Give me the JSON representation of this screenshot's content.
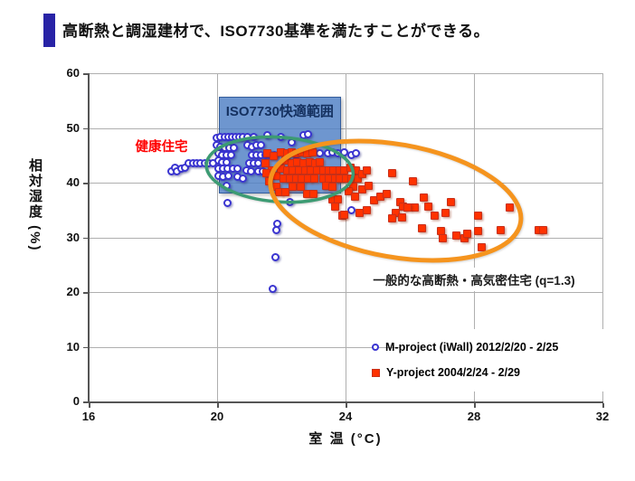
{
  "slide": {
    "title": "高断熱と調湿建材で、ISO7730基準を満たすことができる。",
    "accent_color": "#2823A6"
  },
  "chart_data": {
    "type": "scatter",
    "title": "",
    "xlabel": "室 温 (°C)",
    "ylabel": "相対湿度 (%)",
    "xlim": [
      16,
      32
    ],
    "ylim": [
      0,
      60
    ],
    "xticks": [
      16,
      20,
      24,
      28,
      32
    ],
    "yticks": [
      0,
      10,
      20,
      30,
      40,
      50,
      60
    ],
    "grid": true,
    "legend_position": "bottom-right",
    "series": [
      {
        "name": "M-project (iWall) 2012/2/20 - 2/25",
        "marker": "circle",
        "color": "#3B35D1",
        "fill": "#FFFFFF",
        "points": [
          [
            18.57,
            42.1
          ],
          [
            18.68,
            42.8
          ],
          [
            18.74,
            42.0
          ],
          [
            18.88,
            42.6
          ],
          [
            18.99,
            42.8
          ],
          [
            19.1,
            43.6
          ],
          [
            19.24,
            43.6
          ],
          [
            19.36,
            43.6
          ],
          [
            19.47,
            43.6
          ],
          [
            19.61,
            43.6
          ],
          [
            19.72,
            43.6
          ],
          [
            19.86,
            43.6
          ],
          [
            19.98,
            48.1
          ],
          [
            20.09,
            48.3
          ],
          [
            20.23,
            48.4
          ],
          [
            20.34,
            48.3
          ],
          [
            20.46,
            48.4
          ],
          [
            20.57,
            48.3
          ],
          [
            20.68,
            48.4
          ],
          [
            20.79,
            48.3
          ],
          [
            20.94,
            48.4
          ],
          [
            21.13,
            48.3
          ],
          [
            21.56,
            48.6
          ],
          [
            21.98,
            48.3
          ],
          [
            22.32,
            47.3
          ],
          [
            22.69,
            48.6
          ],
          [
            22.83,
            48.8
          ],
          [
            19.98,
            46.8
          ],
          [
            20.09,
            46.6
          ],
          [
            20.23,
            46.4
          ],
          [
            20.37,
            46.4
          ],
          [
            20.51,
            46.3
          ],
          [
            20.94,
            46.8
          ],
          [
            21.08,
            46.6
          ],
          [
            21.22,
            46.8
          ],
          [
            21.36,
            46.8
          ],
          [
            20.03,
            45.3
          ],
          [
            20.15,
            45.1
          ],
          [
            20.29,
            45.1
          ],
          [
            20.43,
            45.0
          ],
          [
            21.08,
            45.1
          ],
          [
            21.22,
            45.1
          ],
          [
            21.36,
            45.0
          ],
          [
            21.5,
            45.1
          ],
          [
            21.64,
            45.0
          ],
          [
            21.78,
            45.1
          ],
          [
            20.03,
            44.0
          ],
          [
            20.15,
            43.8
          ],
          [
            20.29,
            43.8
          ],
          [
            20.99,
            43.6
          ],
          [
            21.13,
            43.5
          ],
          [
            21.27,
            43.6
          ],
          [
            20.03,
            42.6
          ],
          [
            20.17,
            42.5
          ],
          [
            20.32,
            42.6
          ],
          [
            20.48,
            42.6
          ],
          [
            20.63,
            42.6
          ],
          [
            20.91,
            42.3
          ],
          [
            21.05,
            42.1
          ],
          [
            21.27,
            42.0
          ],
          [
            21.42,
            42.0
          ],
          [
            20.03,
            41.2
          ],
          [
            20.17,
            41.0
          ],
          [
            20.34,
            41.2
          ],
          [
            20.63,
            41.0
          ],
          [
            20.79,
            40.8
          ],
          [
            22.12,
            44.5
          ],
          [
            22.46,
            44.0
          ],
          [
            22.83,
            43.6
          ],
          [
            23.17,
            42.8
          ],
          [
            22.54,
            41.7
          ],
          [
            22.21,
            41.2
          ],
          [
            22.97,
            41.0
          ],
          [
            23.33,
            42.0
          ],
          [
            22.69,
            45.6
          ],
          [
            22.97,
            46.0
          ],
          [
            23.19,
            45.3
          ],
          [
            23.45,
            45.3
          ],
          [
            23.59,
            45.6
          ],
          [
            23.76,
            45.3
          ],
          [
            23.95,
            45.6
          ],
          [
            24.18,
            45.0
          ],
          [
            24.32,
            45.3
          ],
          [
            20.29,
            39.5
          ],
          [
            20.32,
            36.2
          ],
          [
            22.26,
            36.5
          ],
          [
            24.18,
            34.9
          ],
          [
            21.87,
            32.4
          ],
          [
            21.84,
            31.4
          ],
          [
            21.81,
            26.3
          ],
          [
            21.73,
            20.5
          ]
        ]
      },
      {
        "name": "Y-project 2004/2/24 - 2/29",
        "marker": "square",
        "color": "#FF3200",
        "fill": "#FF3200",
        "points": [
          [
            21.5,
            43.6
          ],
          [
            21.56,
            45.3
          ],
          [
            21.75,
            44.8
          ],
          [
            21.7,
            42.3
          ],
          [
            21.53,
            41.7
          ],
          [
            21.84,
            41.2
          ],
          [
            21.61,
            40.3
          ],
          [
            21.98,
            45.6
          ],
          [
            22.18,
            45.3
          ],
          [
            22.32,
            45.5
          ],
          [
            22.46,
            45.3
          ],
          [
            22.63,
            45.5
          ],
          [
            22.8,
            45.3
          ],
          [
            22.97,
            45.5
          ],
          [
            22.12,
            44.0
          ],
          [
            22.32,
            43.6
          ],
          [
            22.49,
            43.8
          ],
          [
            22.69,
            43.6
          ],
          [
            22.88,
            43.8
          ],
          [
            23.05,
            43.6
          ],
          [
            23.19,
            43.8
          ],
          [
            21.98,
            42.5
          ],
          [
            22.18,
            42.3
          ],
          [
            22.35,
            42.3
          ],
          [
            22.54,
            42.3
          ],
          [
            22.74,
            42.3
          ],
          [
            22.91,
            42.3
          ],
          [
            23.11,
            42.3
          ],
          [
            23.31,
            42.3
          ],
          [
            23.47,
            42.3
          ],
          [
            23.62,
            42.3
          ],
          [
            23.81,
            42.3
          ],
          [
            23.95,
            42.3
          ],
          [
            22.06,
            40.8
          ],
          [
            22.26,
            40.7
          ],
          [
            22.46,
            40.8
          ],
          [
            22.63,
            40.7
          ],
          [
            22.83,
            40.8
          ],
          [
            23.02,
            40.7
          ],
          [
            23.31,
            40.8
          ],
          [
            23.47,
            40.7
          ],
          [
            23.67,
            40.8
          ],
          [
            23.81,
            40.8
          ],
          [
            24.01,
            40.7
          ],
          [
            21.84,
            39.2
          ],
          [
            21.92,
            38.2
          ],
          [
            22.12,
            38.2
          ],
          [
            22.35,
            39.2
          ],
          [
            22.6,
            39.2
          ],
          [
            22.8,
            37.9
          ],
          [
            23.0,
            37.9
          ],
          [
            23.39,
            39.5
          ],
          [
            23.59,
            39.3
          ],
          [
            24.15,
            42.8
          ],
          [
            24.32,
            42.3
          ],
          [
            24.18,
            40.8
          ],
          [
            24.38,
            40.7
          ],
          [
            24.24,
            39.2
          ],
          [
            24.52,
            41.5
          ],
          [
            24.66,
            42.3
          ],
          [
            24.1,
            38.4
          ],
          [
            24.3,
            37.5
          ],
          [
            24.52,
            38.7
          ],
          [
            24.72,
            39.5
          ],
          [
            25.45,
            41.7
          ],
          [
            23.59,
            37.0
          ],
          [
            23.76,
            36.9
          ],
          [
            23.67,
            35.7
          ],
          [
            23.9,
            34.0
          ],
          [
            23.95,
            34.2
          ],
          [
            24.43,
            34.5
          ],
          [
            24.66,
            34.9
          ],
          [
            24.89,
            36.7
          ],
          [
            25.08,
            37.5
          ],
          [
            25.28,
            37.9
          ],
          [
            25.7,
            36.5
          ],
          [
            25.79,
            35.7
          ],
          [
            25.56,
            34.5
          ],
          [
            25.45,
            33.4
          ],
          [
            26.1,
            40.2
          ],
          [
            26.44,
            37.2
          ],
          [
            26.16,
            35.4
          ],
          [
            25.93,
            35.5
          ],
          [
            25.76,
            33.7
          ],
          [
            26.58,
            35.7
          ],
          [
            26.78,
            34.0
          ],
          [
            26.38,
            31.6
          ],
          [
            27.11,
            34.4
          ],
          [
            27.28,
            36.4
          ],
          [
            26.97,
            31.2
          ],
          [
            27.03,
            29.9
          ],
          [
            27.45,
            30.4
          ],
          [
            27.71,
            29.9
          ],
          [
            27.79,
            30.7
          ],
          [
            28.13,
            34.0
          ],
          [
            28.13,
            31.1
          ],
          [
            28.24,
            28.1
          ],
          [
            28.83,
            31.4
          ],
          [
            29.12,
            35.4
          ],
          [
            30.02,
            31.4
          ],
          [
            30.16,
            31.4
          ]
        ]
      }
    ],
    "annotations": {
      "comfort_box": {
        "label": "ISO7730快適範囲",
        "t_range": [
          20.05,
          23.8
        ],
        "rh_range": [
          38.3,
          55.7
        ],
        "fill": "#4E7FC4",
        "label_color": "#14305F"
      },
      "healthy_house": {
        "text": "健康住宅",
        "t": 17.45,
        "rh": 46.9,
        "color": "#FF0000"
      },
      "typical_house": {
        "text": "一般的な高断熱・高気密住宅 (q=1.3)",
        "t": 28.0,
        "rh": 22.3,
        "color": "#1a1a1a"
      },
      "green_ellipse": {
        "t": 21.95,
        "rh": 42.4,
        "rt": 2.29,
        "rrh": 5.9,
        "rotation_deg": 4,
        "color": "#3C9B73",
        "stroke_width": 3.5
      },
      "orange_ellipse": {
        "t": 25.56,
        "rh": 36.7,
        "rt": 3.95,
        "rrh": 10.3,
        "rotation_deg": 10,
        "color": "#F5941E",
        "stroke_width": 5
      }
    },
    "gridline_color": "#AFAFAF",
    "axis_color": "#555555"
  }
}
